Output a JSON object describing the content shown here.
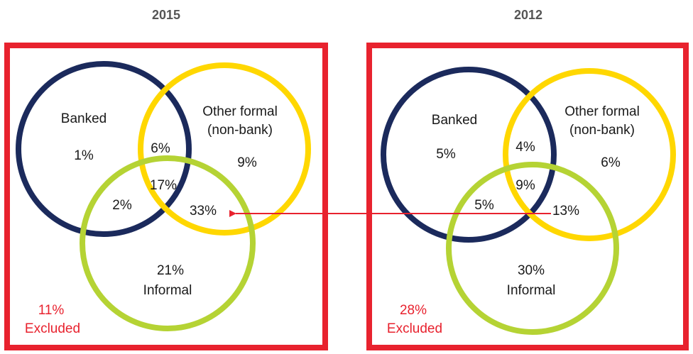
{
  "panels": [
    {
      "year": "2015",
      "sets": {
        "banked": "Banked",
        "other_formal": [
          "Other formal",
          "(non-bank)"
        ],
        "informal": "Informal"
      },
      "regions": {
        "banked_only": "1%",
        "banked_other": "6%",
        "other_only": "9%",
        "all_three": "17%",
        "banked_informal": "2%",
        "other_informal": "33%",
        "informal_only": "21%"
      },
      "excluded": {
        "value": "11%",
        "label": "Excluded"
      }
    },
    {
      "year": "2012",
      "sets": {
        "banked": "Banked",
        "other_formal": [
          "Other formal",
          "(non-bank)"
        ],
        "informal": "Informal"
      },
      "regions": {
        "banked_only": "5%",
        "banked_other": "4%",
        "other_only": "6%",
        "all_three": "9%",
        "banked_informal": "5%",
        "other_informal": "13%",
        "informal_only": "30%"
      },
      "excluded": {
        "value": "28%",
        "label": "Excluded"
      }
    }
  ]
}
